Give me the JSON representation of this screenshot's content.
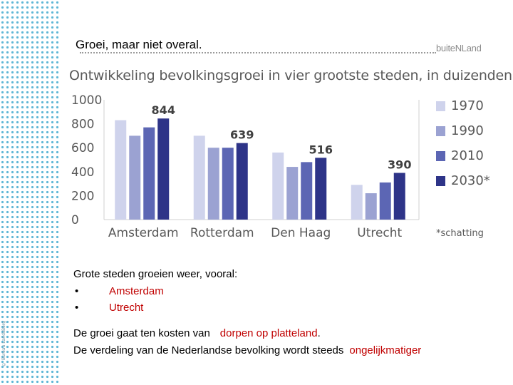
{
  "slide": {
    "title": "Groei, maar niet overal.",
    "logo": "buiteNLand",
    "credit": "© Bureau LandsBerg"
  },
  "chart_data": {
    "type": "bar",
    "title": "Ontwikkeling bevolkingsgroei in vier grootste steden, in duizenden",
    "categories": [
      "Amsterdam",
      "Rotterdam",
      "Den Haag",
      "Utrecht"
    ],
    "series": [
      {
        "name": "1970",
        "color": "#cfd3ec",
        "values": [
          830,
          700,
          560,
          290
        ]
      },
      {
        "name": "1990",
        "color": "#9ba2d2",
        "values": [
          700,
          600,
          440,
          220
        ]
      },
      {
        "name": "2010",
        "color": "#5c66b4",
        "values": [
          770,
          600,
          480,
          310
        ]
      },
      {
        "name": "2030*",
        "color": "#2e3488",
        "values": [
          844,
          639,
          516,
          390
        ]
      }
    ],
    "data_labels": [
      "844",
      "639",
      "516",
      "390"
    ],
    "yticks": [
      "0",
      "200",
      "400",
      "600",
      "800",
      "1000"
    ],
    "ylim": [
      0,
      1000
    ],
    "grid": false,
    "legend_position": "right",
    "footnote": "*schatting"
  },
  "text": {
    "intro": "Grote steden groeien weer, vooral:",
    "bullets": [
      {
        "mark": "•",
        "label": "Amsterdam"
      },
      {
        "mark": "•",
        "label": "Utrecht"
      }
    ],
    "line1_pre": "De groei gaat ten kosten van",
    "line1_red": "dorpen op platteland",
    "line1_post": ".",
    "line2_pre": "De verdeling van de Nederlandse bevolking wordt steeds",
    "line2_red": "ongelijkmatiger"
  }
}
